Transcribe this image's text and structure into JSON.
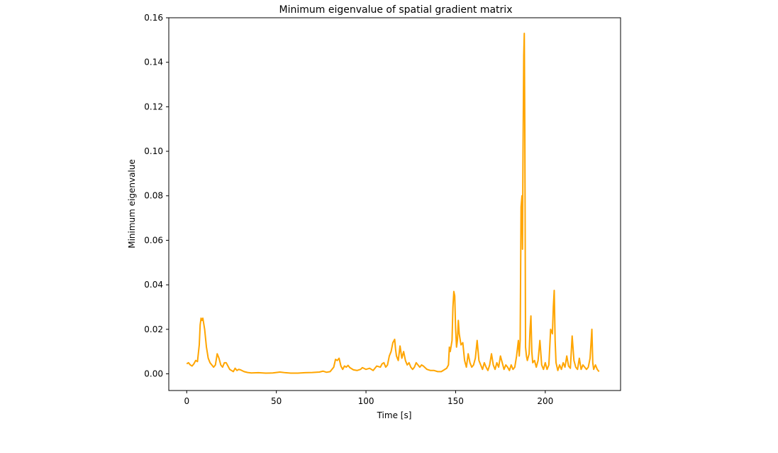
{
  "chart_data": {
    "type": "line",
    "title": "Minimum eigenvalue of spatial gradient matrix",
    "xlabel": "Time [s]",
    "ylabel": "Minimum eigenvalue",
    "xlim": [
      -10,
      242
    ],
    "ylim": [
      -0.0075,
      0.16
    ],
    "xticks": [
      0,
      50,
      100,
      150,
      200
    ],
    "xtick_labels": [
      "0",
      "50",
      "100",
      "150",
      "200"
    ],
    "yticks": [
      0.0,
      0.02,
      0.04,
      0.06,
      0.08,
      0.1,
      0.12,
      0.14,
      0.16
    ],
    "ytick_labels": [
      "0.00",
      "0.02",
      "0.04",
      "0.06",
      "0.08",
      "0.10",
      "0.12",
      "0.14",
      "0.16"
    ],
    "grid": false,
    "series": [
      {
        "color": "#ffa500",
        "points": [
          [
            0,
            0.0045
          ],
          [
            1,
            0.005
          ],
          [
            2,
            0.004
          ],
          [
            3,
            0.0035
          ],
          [
            4,
            0.0045
          ],
          [
            5,
            0.006
          ],
          [
            6,
            0.0055
          ],
          [
            7,
            0.013
          ],
          [
            7.5,
            0.022
          ],
          [
            8,
            0.025
          ],
          [
            8.5,
            0.024
          ],
          [
            9,
            0.025
          ],
          [
            10,
            0.02
          ],
          [
            11,
            0.012
          ],
          [
            12,
            0.007
          ],
          [
            13,
            0.005
          ],
          [
            14,
            0.004
          ],
          [
            15,
            0.003
          ],
          [
            16,
            0.004
          ],
          [
            17,
            0.009
          ],
          [
            18,
            0.007
          ],
          [
            19,
            0.004
          ],
          [
            20,
            0.003
          ],
          [
            21,
            0.005
          ],
          [
            22,
            0.005
          ],
          [
            23,
            0.0035
          ],
          [
            24,
            0.002
          ],
          [
            25,
            0.0015
          ],
          [
            26,
            0.001
          ],
          [
            27,
            0.0025
          ],
          [
            28,
            0.0015
          ],
          [
            29,
            0.002
          ],
          [
            30,
            0.0018
          ],
          [
            32,
            0.001
          ],
          [
            34,
            0.0006
          ],
          [
            36,
            0.0004
          ],
          [
            40,
            0.0005
          ],
          [
            44,
            0.0003
          ],
          [
            48,
            0.0004
          ],
          [
            52,
            0.0008
          ],
          [
            55,
            0.0005
          ],
          [
            58,
            0.0003
          ],
          [
            62,
            0.0003
          ],
          [
            66,
            0.0005
          ],
          [
            70,
            0.0006
          ],
          [
            74,
            0.0008
          ],
          [
            76,
            0.0012
          ],
          [
            78,
            0.0007
          ],
          [
            80,
            0.001
          ],
          [
            82,
            0.003
          ],
          [
            83,
            0.0065
          ],
          [
            84,
            0.006
          ],
          [
            85,
            0.007
          ],
          [
            86,
            0.0035
          ],
          [
            87,
            0.002
          ],
          [
            88,
            0.0035
          ],
          [
            89,
            0.003
          ],
          [
            90,
            0.0038
          ],
          [
            91,
            0.0028
          ],
          [
            93,
            0.0018
          ],
          [
            95,
            0.0015
          ],
          [
            97,
            0.002
          ],
          [
            98,
            0.0028
          ],
          [
            100,
            0.002
          ],
          [
            102,
            0.0025
          ],
          [
            104,
            0.0015
          ],
          [
            106,
            0.0035
          ],
          [
            108,
            0.003
          ],
          [
            109,
            0.0045
          ],
          [
            110,
            0.005
          ],
          [
            111,
            0.003
          ],
          [
            112,
            0.004
          ],
          [
            113,
            0.008
          ],
          [
            114,
            0.01
          ],
          [
            115,
            0.014
          ],
          [
            116,
            0.0155
          ],
          [
            116.5,
            0.011
          ],
          [
            117,
            0.008
          ],
          [
            118,
            0.006
          ],
          [
            119,
            0.0125
          ],
          [
            120,
            0.007
          ],
          [
            121,
            0.01
          ],
          [
            122,
            0.006
          ],
          [
            123,
            0.004
          ],
          [
            124,
            0.005
          ],
          [
            125,
            0.003
          ],
          [
            126,
            0.002
          ],
          [
            127,
            0.003
          ],
          [
            128,
            0.005
          ],
          [
            129,
            0.004
          ],
          [
            130,
            0.003
          ],
          [
            131,
            0.004
          ],
          [
            132,
            0.0035
          ],
          [
            134,
            0.002
          ],
          [
            136,
            0.0015
          ],
          [
            138,
            0.0015
          ],
          [
            140,
            0.001
          ],
          [
            142,
            0.001
          ],
          [
            144,
            0.002
          ],
          [
            145,
            0.0025
          ],
          [
            146,
            0.004
          ],
          [
            146.5,
            0.012
          ],
          [
            147,
            0.01
          ],
          [
            148,
            0.015
          ],
          [
            148.5,
            0.03
          ],
          [
            149,
            0.037
          ],
          [
            149.5,
            0.035
          ],
          [
            150,
            0.02
          ],
          [
            150.5,
            0.012
          ],
          [
            151,
            0.015
          ],
          [
            151.5,
            0.024
          ],
          [
            152,
            0.018
          ],
          [
            153,
            0.013
          ],
          [
            154,
            0.014
          ],
          [
            155,
            0.006
          ],
          [
            156,
            0.003
          ],
          [
            157,
            0.009
          ],
          [
            158,
            0.005
          ],
          [
            159,
            0.003
          ],
          [
            160,
            0.004
          ],
          [
            161,
            0.007
          ],
          [
            162,
            0.015
          ],
          [
            163,
            0.006
          ],
          [
            164,
            0.004
          ],
          [
            165,
            0.002
          ],
          [
            166,
            0.005
          ],
          [
            167,
            0.003
          ],
          [
            168,
            0.0015
          ],
          [
            169,
            0.004
          ],
          [
            170,
            0.009
          ],
          [
            171,
            0.004
          ],
          [
            172,
            0.002
          ],
          [
            173,
            0.005
          ],
          [
            174,
            0.003
          ],
          [
            175,
            0.008
          ],
          [
            176,
            0.005
          ],
          [
            177,
            0.002
          ],
          [
            178,
            0.004
          ],
          [
            179,
            0.003
          ],
          [
            180,
            0.0015
          ],
          [
            181,
            0.004
          ],
          [
            182,
            0.002
          ],
          [
            183,
            0.003
          ],
          [
            184,
            0.008
          ],
          [
            185,
            0.015
          ],
          [
            185.5,
            0.008
          ],
          [
            186,
            0.015
          ],
          [
            186.5,
            0.075
          ],
          [
            187,
            0.08
          ],
          [
            187.3,
            0.056
          ],
          [
            187.6,
            0.1
          ],
          [
            188,
            0.143
          ],
          [
            188.3,
            0.153
          ],
          [
            188.6,
            0.11
          ],
          [
            189,
            0.012
          ],
          [
            189.5,
            0.008
          ],
          [
            190,
            0.006
          ],
          [
            191,
            0.009
          ],
          [
            191.5,
            0.02
          ],
          [
            192,
            0.026
          ],
          [
            192.5,
            0.01
          ],
          [
            193,
            0.005
          ],
          [
            194,
            0.006
          ],
          [
            195,
            0.003
          ],
          [
            196,
            0.006
          ],
          [
            197,
            0.015
          ],
          [
            198,
            0.004
          ],
          [
            199,
            0.002
          ],
          [
            200,
            0.005
          ],
          [
            201,
            0.002
          ],
          [
            202,
            0.004
          ],
          [
            203,
            0.02
          ],
          [
            204,
            0.018
          ],
          [
            204.5,
            0.03
          ],
          [
            205,
            0.0375
          ],
          [
            205.5,
            0.015
          ],
          [
            206,
            0.005
          ],
          [
            207,
            0.0015
          ],
          [
            208,
            0.004
          ],
          [
            209,
            0.002
          ],
          [
            210,
            0.005
          ],
          [
            211,
            0.003
          ],
          [
            212,
            0.008
          ],
          [
            213,
            0.0035
          ],
          [
            214,
            0.0025
          ],
          [
            215,
            0.017
          ],
          [
            216,
            0.006
          ],
          [
            217,
            0.003
          ],
          [
            218,
            0.002
          ],
          [
            219,
            0.007
          ],
          [
            220,
            0.002
          ],
          [
            221,
            0.004
          ],
          [
            222,
            0.003
          ],
          [
            223,
            0.002
          ],
          [
            224,
            0.003
          ],
          [
            225,
            0.007
          ],
          [
            226,
            0.02
          ],
          [
            226.5,
            0.005
          ],
          [
            227,
            0.002
          ],
          [
            228,
            0.004
          ],
          [
            229,
            0.002
          ],
          [
            230,
            0.001
          ]
        ]
      }
    ]
  }
}
